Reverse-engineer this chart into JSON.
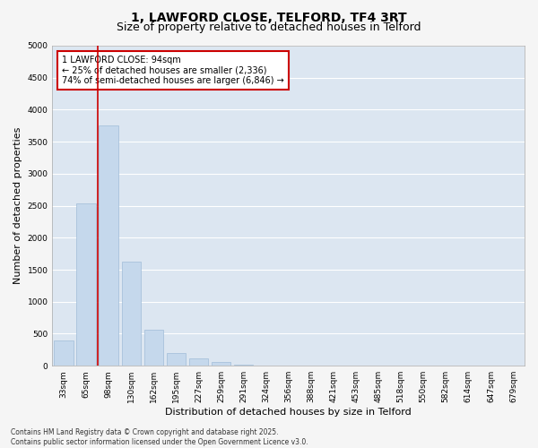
{
  "title_line1": "1, LAWFORD CLOSE, TELFORD, TF4 3RT",
  "title_line2": "Size of property relative to detached houses in Telford",
  "xlabel": "Distribution of detached houses by size in Telford",
  "ylabel": "Number of detached properties",
  "categories": [
    "33sqm",
    "65sqm",
    "98sqm",
    "130sqm",
    "162sqm",
    "195sqm",
    "227sqm",
    "259sqm",
    "291sqm",
    "324sqm",
    "356sqm",
    "388sqm",
    "421sqm",
    "453sqm",
    "485sqm",
    "518sqm",
    "550sqm",
    "582sqm",
    "614sqm",
    "647sqm",
    "679sqm"
  ],
  "values": [
    390,
    2540,
    3750,
    1620,
    560,
    200,
    110,
    55,
    20,
    0,
    0,
    0,
    0,
    0,
    0,
    0,
    0,
    0,
    0,
    0,
    0
  ],
  "bar_color": "#c5d8ec",
  "bar_edge_color": "#a0bcd8",
  "bg_color": "#dce6f1",
  "grid_color": "#ffffff",
  "vline_color": "#cc0000",
  "vline_x_index": 1.5,
  "annotation_line1": "1 LAWFORD CLOSE: 94sqm",
  "annotation_line2": "← 25% of detached houses are smaller (2,336)",
  "annotation_line3": "74% of semi-detached houses are larger (6,846) →",
  "annotation_box_edge_color": "#cc0000",
  "annotation_box_face_color": "#ffffff",
  "ylim": [
    0,
    5000
  ],
  "yticks": [
    0,
    500,
    1000,
    1500,
    2000,
    2500,
    3000,
    3500,
    4000,
    4500,
    5000
  ],
  "footnote_line1": "Contains HM Land Registry data © Crown copyright and database right 2025.",
  "footnote_line2": "Contains public sector information licensed under the Open Government Licence v3.0.",
  "fig_bg_color": "#f5f5f5",
  "title_fontsize": 10,
  "subtitle_fontsize": 9,
  "tick_fontsize": 6.5,
  "axis_label_fontsize": 8,
  "annotation_fontsize": 7,
  "footnote_fontsize": 5.5
}
